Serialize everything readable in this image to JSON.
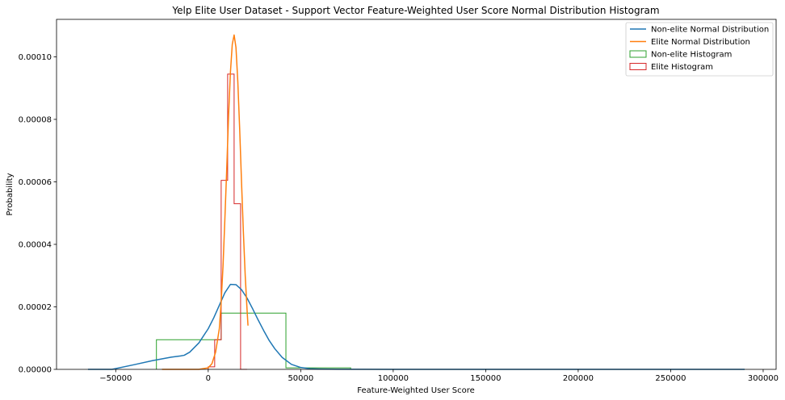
{
  "chart_data": {
    "type": "line",
    "title": "Yelp Elite User Dataset - Support Vector Feature-Weighted User Score Normal Distribution Histogram",
    "xlabel": "Feature-Weighted User Score",
    "ylabel": "Probability",
    "xlim": [
      -82000,
      307000
    ],
    "ylim": [
      0,
      0.000112
    ],
    "xticks": [
      -50000,
      0,
      50000,
      100000,
      150000,
      200000,
      250000,
      300000
    ],
    "xtick_labels": [
      "−50000",
      "0",
      "50000",
      "100000",
      "150000",
      "200000",
      "250000",
      "300000"
    ],
    "yticks": [
      0,
      2e-05,
      4e-05,
      6e-05,
      8e-05,
      0.0001
    ],
    "ytick_labels": [
      "0.00000",
      "0.00002",
      "0.00004",
      "0.00006",
      "0.00008",
      "0.00010"
    ],
    "legend_position": "top-right",
    "grid": false,
    "series": [
      {
        "name": "Non-elite Normal Distribution",
        "kind": "line",
        "color": "#1f77b4",
        "x": [
          -65000,
          -52000,
          -40000,
          -30000,
          -20000,
          -15000,
          -13000,
          -10000,
          -5000,
          0,
          3000,
          6000,
          9000,
          12000,
          15000,
          18000,
          21000,
          24000,
          27000,
          30000,
          33000,
          36000,
          40000,
          45000,
          50000,
          55000,
          60000,
          65000,
          70000,
          100000,
          150000,
          200000,
          250000,
          290000
        ],
        "y": [
          0,
          0,
          1.5e-06,
          2.8e-06,
          3.9e-06,
          4.3e-06,
          4.5e-06,
          5.5e-06,
          8.5e-06,
          1.3e-05,
          1.65e-05,
          2.05e-05,
          2.45e-05,
          2.72e-05,
          2.71e-05,
          2.55e-05,
          2.28e-05,
          1.94e-05,
          1.58e-05,
          1.24e-05,
          9.2e-06,
          6.6e-06,
          3.8e-06,
          1.6e-06,
          6e-07,
          2e-07,
          1e-07,
          5e-08,
          2e-08,
          0,
          0,
          0,
          0,
          0
        ]
      },
      {
        "name": "Elite Normal Distribution",
        "kind": "line",
        "color": "#ff7f0e",
        "x": [
          -25000,
          -5000,
          0,
          2000,
          4000,
          6000,
          7000,
          8000,
          9000,
          10000,
          11000,
          12000,
          13000,
          14000,
          15000,
          16000,
          17000,
          18000,
          19000,
          20000,
          21000,
          21500
        ],
        "y": [
          0,
          0,
          5e-07,
          1.8e-06,
          5.5e-06,
          1.3e-05,
          2.15e-05,
          3.3e-05,
          4.8e-05,
          6.4e-05,
          8.1e-05,
          9.5e-05,
          0.000104,
          0.000107,
          0.000103,
          9.2e-05,
          7.7e-05,
          6e-05,
          4.4e-05,
          3e-05,
          1.9e-05,
          1.4e-05
        ]
      },
      {
        "name": "Non-elite Histogram",
        "kind": "step",
        "color": "#2ca02c",
        "bin_edges": [
          -28000,
          7000,
          42000,
          77000
        ],
        "values": [
          9.5e-06,
          1.8e-05,
          5e-07
        ]
      },
      {
        "name": "Elite Histogram",
        "kind": "step",
        "color": "#d62728",
        "bin_edges": [
          0,
          3500,
          7000,
          10500,
          14000,
          17500,
          21000
        ],
        "values": [
          8e-07,
          9.5e-06,
          6.05e-05,
          9.45e-05,
          5.3e-05,
          0
        ]
      }
    ]
  }
}
